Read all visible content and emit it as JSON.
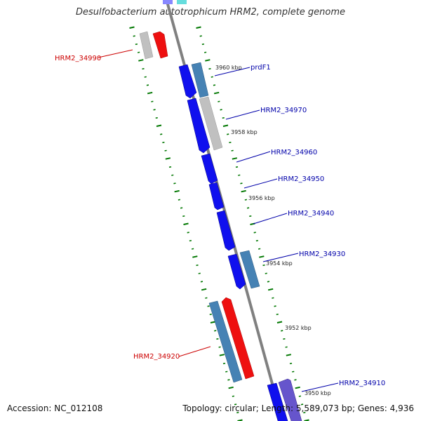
{
  "header": {
    "title": "Desulfobacterium autotrophicum HRM2, complete genome"
  },
  "footer": {
    "accession": "Accession: NC_012108",
    "summary": "Topology: circular; Length: 5,589,073 bp; Genes: 4,936"
  },
  "colors": {
    "forward_gene": "#1010ee",
    "steel_gene": "#4682b4",
    "grey_gene": "#c0c0c0",
    "red_gene": "#ee1010",
    "purple_gene": "#6655cc",
    "tick": "#007700",
    "backbone": "#888888",
    "label_red": "#cc0000",
    "label_blue": "#0000aa"
  },
  "scale_labels": [
    "3960 kbp",
    "3958 kbp",
    "3956 kbp",
    "3954 kbp",
    "3952 kbp",
    "3950 kbp"
  ],
  "gene_labels": [
    {
      "name": "HRM2_34990",
      "color": "red"
    },
    {
      "name": "prdF1",
      "color": "blue"
    },
    {
      "name": "HRM2_34970",
      "color": "blue"
    },
    {
      "name": "HRM2_34960",
      "color": "blue"
    },
    {
      "name": "HRM2_34950",
      "color": "blue"
    },
    {
      "name": "HRM2_34940",
      "color": "blue"
    },
    {
      "name": "HRM2_34930",
      "color": "blue"
    },
    {
      "name": "HRM2_34920",
      "color": "red"
    },
    {
      "name": "HRM2_34910",
      "color": "blue"
    }
  ]
}
